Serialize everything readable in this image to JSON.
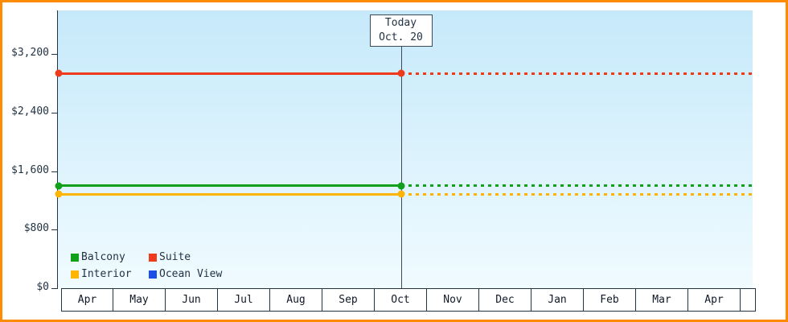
{
  "chart_data": {
    "type": "line",
    "title": "",
    "xlabel": "",
    "ylabel": "",
    "grid": false,
    "legend_position": "bottom-left",
    "colors": {
      "border": "#ff8c00",
      "plot_top": "#c6e9fa",
      "plot_bottom": "#f0fbff",
      "axis_text": "#223344",
      "today_line": "#3a4a5a"
    },
    "x_axis": {
      "months": [
        "Apr",
        "May",
        "Jun",
        "Jul",
        "Aug",
        "Sep",
        "Oct",
        "Nov",
        "Dec",
        "Jan",
        "Feb",
        "Mar",
        "Apr"
      ],
      "partial_trailing_cell": true
    },
    "y_axis": {
      "max": 3800,
      "ticks": [
        {
          "label": "$3,200",
          "value": 3200
        },
        {
          "label": "$2,400",
          "value": 2400
        },
        {
          "label": "$1,600",
          "value": 1600
        },
        {
          "label": "$800",
          "value": 800
        },
        {
          "label": "$0",
          "value": 0
        }
      ]
    },
    "today": {
      "month": "Oct"
    },
    "today_label": {
      "line1": "Today",
      "line2": "Oct. 20"
    },
    "series": [
      {
        "name": "Suite",
        "color": "#ef3b1c",
        "price": 2940,
        "style": "solid-then-dotted"
      },
      {
        "name": "Balcony",
        "color": "#11a01a",
        "price": 1400,
        "style": "solid-then-dotted"
      },
      {
        "name": "Interior",
        "color": "#ffb400",
        "price": 1285,
        "style": "solid-then-dotted"
      },
      {
        "name": "Ocean View",
        "color": "#1a4fe8",
        "price": null,
        "style": "none"
      }
    ],
    "legend": [
      {
        "label": "Balcony",
        "color": "#11a01a"
      },
      {
        "label": "Suite",
        "color": "#ef3b1c"
      },
      {
        "label": "Interior",
        "color": "#ffb400"
      },
      {
        "label": "Ocean View",
        "color": "#1a4fe8"
      }
    ]
  }
}
